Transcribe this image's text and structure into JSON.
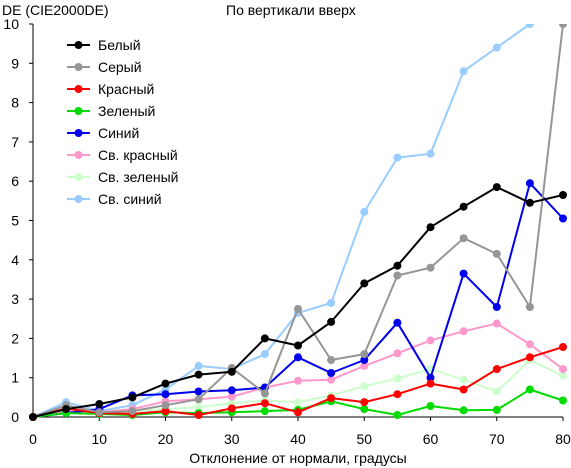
{
  "chart_data": {
    "type": "line",
    "title": "По вертикали вверх",
    "ylabel": "DE (CIE2000DE)",
    "xlabel": "Отклонение от нормали, градусы",
    "xlim": [
      0,
      80
    ],
    "ylim": [
      0,
      10
    ],
    "x_ticks": [
      "0",
      "10",
      "20",
      "30",
      "40",
      "50",
      "60",
      "70",
      "80"
    ],
    "y_ticks": [
      "0",
      "1",
      "2",
      "3",
      "4",
      "5",
      "6",
      "7",
      "8",
      "9",
      "10"
    ],
    "grid": false,
    "legend_position": "top-left",
    "x": [
      0,
      5,
      10,
      15,
      20,
      25,
      30,
      35,
      40,
      45,
      50,
      55,
      60,
      65,
      70,
      75,
      80
    ],
    "series": [
      {
        "name": "Белый",
        "color": "#000000",
        "values": [
          0,
          0.2,
          0.33,
          0.5,
          0.85,
          1.08,
          1.15,
          2.0,
          1.82,
          2.42,
          3.4,
          3.85,
          4.83,
          5.35,
          5.85,
          5.45,
          5.65
        ]
      },
      {
        "name": "Серый",
        "color": "#969696",
        "values": [
          0,
          0.3,
          0.12,
          0.15,
          0.3,
          0.45,
          1.25,
          0.6,
          2.75,
          1.45,
          1.6,
          3.6,
          3.8,
          4.55,
          4.15,
          2.8,
          10.0
        ]
      },
      {
        "name": "Красный",
        "color": "#ff0000",
        "values": [
          0,
          0.22,
          0.1,
          0.08,
          0.15,
          0.05,
          0.22,
          0.35,
          0.12,
          0.48,
          0.38,
          0.58,
          0.85,
          0.7,
          1.22,
          1.52,
          1.78
        ]
      },
      {
        "name": "Зеленый",
        "color": "#00dc00",
        "values": [
          0,
          0.1,
          0.08,
          0.05,
          0.12,
          0.1,
          0.12,
          0.15,
          0.18,
          0.4,
          0.2,
          0.05,
          0.28,
          0.17,
          0.18,
          0.7,
          0.42
        ]
      },
      {
        "name": "Синий",
        "color": "#0000ee",
        "values": [
          0,
          0.1,
          0.2,
          0.55,
          0.58,
          0.65,
          0.68,
          0.75,
          1.52,
          1.12,
          1.45,
          2.4,
          1.0,
          3.65,
          2.8,
          5.95,
          5.05
        ]
      },
      {
        "name": "Св. красный",
        "color": "#ff99cc",
        "values": [
          0,
          0.15,
          0.12,
          0.2,
          0.4,
          0.45,
          0.52,
          0.75,
          0.92,
          0.95,
          1.3,
          1.62,
          1.95,
          2.18,
          2.38,
          1.85,
          1.22
        ]
      },
      {
        "name": "Св. зеленый",
        "color": "#ccffcc",
        "values": [
          0,
          0.12,
          0.1,
          0.15,
          0.2,
          0.25,
          0.35,
          0.42,
          0.38,
          0.55,
          0.78,
          0.98,
          1.22,
          0.95,
          0.65,
          1.45,
          1.05
        ]
      },
      {
        "name": "Св. синий",
        "color": "#99ccff",
        "values": [
          0,
          0.38,
          0.15,
          0.3,
          0.7,
          1.3,
          1.22,
          1.6,
          2.65,
          2.9,
          5.22,
          6.6,
          6.7,
          8.8,
          9.4,
          10.0,
          null
        ]
      }
    ]
  }
}
